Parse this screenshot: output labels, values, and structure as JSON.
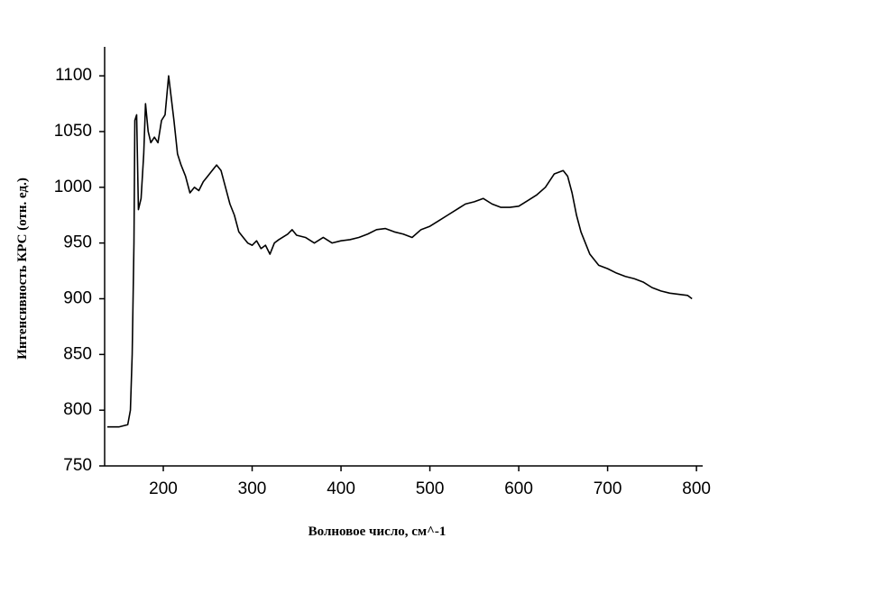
{
  "chart_data": {
    "type": "line",
    "x_label": "Волновое число, см^-1",
    "y_label": "Интенсивность КРС (отн. ед.)",
    "xlim": [
      134,
      807
    ],
    "ylim": [
      750,
      1126
    ],
    "xticks": [
      200,
      300,
      400,
      500,
      600,
      700,
      800
    ],
    "yticks": [
      750,
      800,
      850,
      900,
      950,
      1000,
      1050,
      1100
    ],
    "grid": false,
    "series": [
      {
        "name": "spectrum",
        "color": "#000000",
        "x": [
          137,
          150,
          160,
          163,
          165,
          167,
          168,
          170,
          172,
          175,
          178,
          180,
          183,
          186,
          190,
          194,
          198,
          202,
          206,
          209,
          212,
          216,
          220,
          225,
          230,
          235,
          240,
          245,
          250,
          255,
          260,
          265,
          270,
          275,
          280,
          285,
          290,
          295,
          300,
          305,
          310,
          315,
          320,
          325,
          330,
          340,
          345,
          350,
          360,
          370,
          380,
          390,
          400,
          410,
          420,
          430,
          440,
          450,
          460,
          470,
          480,
          490,
          500,
          510,
          520,
          530,
          540,
          550,
          560,
          570,
          580,
          590,
          600,
          610,
          620,
          630,
          640,
          650,
          655,
          660,
          665,
          670,
          680,
          690,
          700,
          710,
          720,
          730,
          740,
          750,
          760,
          770,
          780,
          790,
          795
        ],
        "values": [
          785,
          785,
          787,
          800,
          850,
          950,
          1060,
          1065,
          980,
          990,
          1030,
          1075,
          1050,
          1040,
          1045,
          1040,
          1060,
          1065,
          1100,
          1080,
          1060,
          1030,
          1020,
          1010,
          995,
          1000,
          997,
          1005,
          1010,
          1015,
          1020,
          1015,
          1000,
          985,
          975,
          960,
          955,
          950,
          948,
          952,
          945,
          948,
          940,
          950,
          953,
          958,
          962,
          957,
          955,
          950,
          955,
          950,
          952,
          953,
          955,
          958,
          962,
          963,
          960,
          958,
          955,
          962,
          965,
          970,
          975,
          980,
          985,
          987,
          990,
          985,
          982,
          982,
          983,
          988,
          993,
          1000,
          1012,
          1015,
          1010,
          995,
          975,
          960,
          940,
          930,
          927,
          923,
          920,
          918,
          915,
          910,
          907,
          905,
          904,
          903,
          900
        ]
      }
    ]
  }
}
